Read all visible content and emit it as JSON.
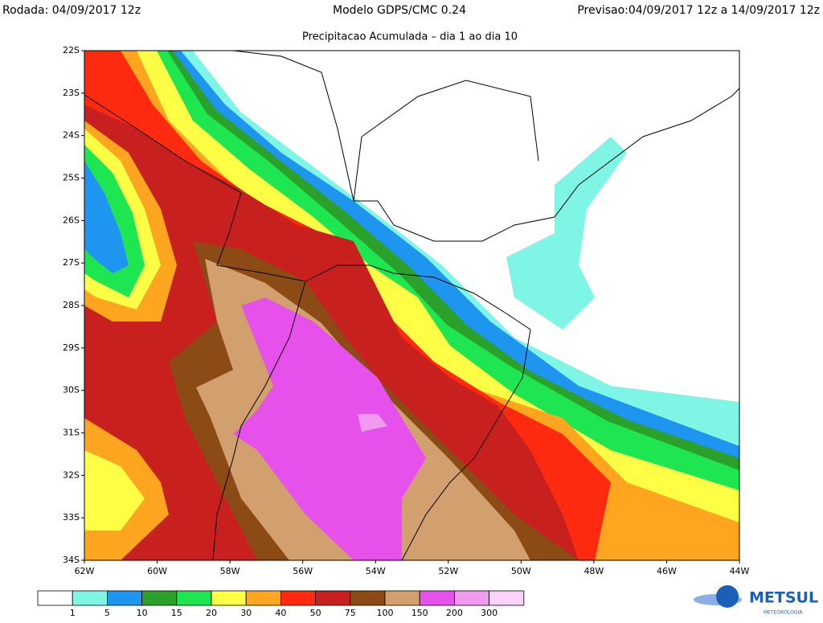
{
  "header": {
    "run": "Rodada: 04/09/2017 12z",
    "model": "Modelo GDPS/CMC 0.24",
    "forecast": "Previsao:04/09/2017 12z a 14/09/2017 12z",
    "subtitle": "Precipitacao Acumulada – dia 1 ao dia 10"
  },
  "map": {
    "lat_labels": [
      "22S",
      "23S",
      "24S",
      "25S",
      "26S",
      "27S",
      "28S",
      "29S",
      "30S",
      "31S",
      "32S",
      "33S",
      "34S"
    ],
    "lon_labels": [
      "62W",
      "60W",
      "58W",
      "56W",
      "54W",
      "52W",
      "50W",
      "48W",
      "46W",
      "44W"
    ]
  },
  "colorbar": {
    "colors": [
      "#ffffff",
      "#7ff5e6",
      "#1e96f0",
      "#2ba02b",
      "#1ee650",
      "#ffff46",
      "#ffa520",
      "#ff2a10",
      "#c8201e",
      "#8c4a14",
      "#d2a06e",
      "#e650eb",
      "#f09bf0",
      "#fad2fa"
    ],
    "labels": [
      1,
      5,
      10,
      15,
      20,
      30,
      40,
      50,
      75,
      100,
      150,
      200,
      300
    ]
  },
  "logo": {
    "name": "METSUL",
    "tagline": "METEOROLOGIA"
  }
}
